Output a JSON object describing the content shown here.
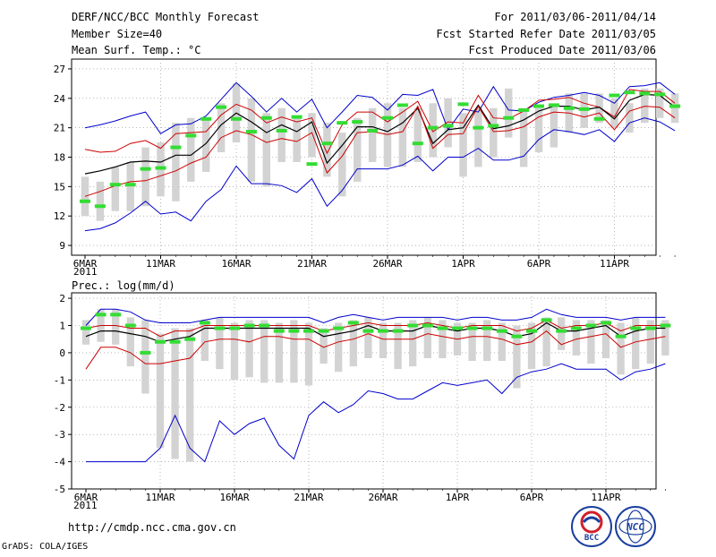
{
  "header": {
    "title": "DERF/NCC/BCC Monthly Forecast",
    "member_size": "Member Size=40",
    "variable": "Mean Surf. Temp.: °C",
    "forecast_period": "For 2011/03/06-2011/04/14",
    "started_refer": "Fcst Started Refer Date 2011/03/05",
    "produced": "Fcst Produced Date 2011/03/06"
  },
  "footer": {
    "url": "http://cmdp.ncc.cma.gov.cn",
    "credit": "GrADS: COLA/IGES",
    "logo_bcc": "BCC",
    "logo_ncc": "NCC"
  },
  "colors": {
    "envelope": "#0000cc",
    "inner": "#cc0000",
    "mean": "#000000",
    "median": "#33dd33",
    "box": "#d3d3d3"
  },
  "chart_data": [
    {
      "type": "line",
      "title": "",
      "ylabel": "Mean Surf. Temp.: °C",
      "ylim": [
        8,
        28
      ],
      "y_ticks": [
        9,
        12,
        15,
        18,
        21,
        24,
        27
      ],
      "x_day_range": [
        0,
        39
      ],
      "x_tick_days": [
        0,
        5,
        10,
        15,
        20,
        25,
        30,
        35
      ],
      "x_ticks": [
        "6MAR",
        "11MAR",
        "16MAR",
        "21MAR",
        "26MAR",
        "1APR",
        "6APR",
        "11APR"
      ],
      "year_label": "2011",
      "box_low": [
        12.0,
        11.5,
        12.5,
        12.5,
        13.0,
        14.0,
        13.5,
        15.5,
        16.5,
        18.5,
        19.5,
        15.5,
        15.0,
        17.5,
        17.5,
        18.0,
        16.0,
        14.0,
        15.5,
        17.5,
        17.0,
        17.0,
        17.5,
        18.0,
        19.0,
        16.0,
        17.0,
        18.0,
        20.0,
        17.0,
        18.5,
        19.0,
        20.5,
        21.0,
        21.5,
        21.0,
        20.5,
        21.5,
        22.0,
        21.5
      ],
      "box_high": [
        16.0,
        15.5,
        17.0,
        17.5,
        19.0,
        19.5,
        21.5,
        22.0,
        22.0,
        23.5,
        25.5,
        24.0,
        22.5,
        23.0,
        22.0,
        22.5,
        21.5,
        20.5,
        22.0,
        23.0,
        23.5,
        23.0,
        23.0,
        23.5,
        24.0,
        22.5,
        23.0,
        23.0,
        25.0,
        23.0,
        23.0,
        23.5,
        24.5,
        24.5,
        24.5,
        24.0,
        23.5,
        25.0,
        25.0,
        24.5
      ],
      "series": [
        {
          "name": "max",
          "values": [
            21.0,
            21.3,
            21.7,
            22.2,
            22.6,
            20.4,
            21.3,
            21.4,
            22.2,
            23.9,
            25.6,
            24.2,
            22.6,
            24.0,
            22.6,
            23.9,
            21.0,
            22.6,
            24.3,
            24.1,
            22.8,
            24.4,
            24.3,
            24.9,
            20.8,
            22.9,
            22.6,
            25.2,
            22.8,
            22.7,
            23.6,
            24.1,
            24.3,
            24.6,
            24.3,
            23.5,
            25.2,
            25.3,
            25.6,
            24.4
          ]
        },
        {
          "name": "upper",
          "values": [
            18.8,
            18.5,
            18.6,
            19.4,
            19.7,
            18.9,
            20.4,
            20.5,
            20.6,
            22.3,
            23.4,
            22.8,
            21.5,
            22.1,
            21.6,
            22.0,
            18.4,
            21.3,
            22.6,
            22.6,
            21.6,
            22.6,
            23.7,
            20.6,
            21.6,
            21.5,
            24.3,
            22.0,
            21.9,
            22.7,
            23.8,
            23.9,
            24.1,
            23.5,
            23.1,
            22.1,
            24.9,
            24.7,
            24.7,
            23.5
          ]
        },
        {
          "name": "mean",
          "values": [
            16.3,
            16.6,
            17.0,
            17.5,
            17.6,
            17.5,
            18.2,
            18.2,
            19.4,
            21.3,
            22.5,
            21.6,
            20.5,
            21.3,
            20.6,
            21.6,
            17.4,
            19.2,
            21.1,
            21.1,
            20.6,
            21.5,
            23.0,
            19.4,
            20.8,
            21.0,
            23.3,
            20.9,
            21.2,
            21.8,
            22.7,
            23.2,
            23.2,
            22.8,
            23.1,
            21.9,
            23.8,
            24.4,
            24.3,
            23.1
          ]
        },
        {
          "name": "lower",
          "values": [
            14.0,
            14.5,
            15.1,
            15.5,
            15.6,
            16.1,
            16.6,
            17.4,
            18.0,
            20.0,
            20.7,
            20.3,
            19.5,
            19.9,
            19.6,
            20.5,
            16.4,
            18.1,
            20.5,
            20.6,
            20.3,
            20.6,
            23.2,
            18.9,
            20.3,
            20.4,
            23.2,
            20.6,
            20.7,
            21.1,
            22.1,
            22.6,
            22.5,
            22.1,
            22.5,
            20.8,
            22.7,
            23.2,
            23.1,
            22.0
          ]
        },
        {
          "name": "min",
          "values": [
            10.5,
            10.7,
            11.3,
            12.3,
            13.5,
            12.2,
            12.4,
            11.5,
            13.5,
            14.7,
            17.1,
            15.3,
            15.3,
            15.1,
            14.4,
            15.8,
            13.0,
            14.6,
            16.8,
            16.8,
            16.8,
            17.2,
            18.1,
            16.6,
            18.0,
            18.0,
            18.9,
            17.7,
            17.7,
            18.1,
            19.8,
            20.8,
            20.6,
            20.3,
            20.8,
            19.6,
            21.5,
            22.0,
            21.6,
            20.7
          ]
        }
      ],
      "medians": [
        13.5,
        13.0,
        15.2,
        15.2,
        16.8,
        16.9,
        19.0,
        20.2,
        21.9,
        23.1,
        21.9,
        20.6,
        22.0,
        20.7,
        22.1,
        17.3,
        19.4,
        21.5,
        21.6,
        20.7,
        22.0,
        23.3,
        19.4,
        21.0,
        21.2,
        23.4,
        21.0,
        21.2,
        22.0,
        22.8,
        23.2,
        23.3,
        23.0,
        22.9,
        21.9,
        24.3,
        24.6,
        24.5,
        24.4,
        23.2
      ]
    },
    {
      "type": "line",
      "title": "",
      "ylabel": "Prec.: log(mm/d)",
      "ylim": [
        -5,
        2.2
      ],
      "y_ticks": [
        -5,
        -4,
        -3,
        -2,
        -1,
        0,
        1,
        2
      ],
      "x_day_range": [
        0,
        39
      ],
      "x_tick_days": [
        0,
        5,
        10,
        15,
        20,
        25,
        30,
        35
      ],
      "x_ticks": [
        "6MAR",
        "11MAR",
        "16MAR",
        "21MAR",
        "26MAR",
        "1APR",
        "6APR",
        "11APR"
      ],
      "year_label": "2011",
      "box_low": [
        0.3,
        0.4,
        0.3,
        -0.5,
        -1.5,
        -3.5,
        -3.9,
        -4.0,
        -0.3,
        -0.6,
        -1.0,
        -0.9,
        -1.1,
        -1.1,
        -1.1,
        -1.2,
        -0.4,
        -0.7,
        -0.5,
        -0.2,
        -0.2,
        -0.6,
        -0.5,
        -0.2,
        -0.2,
        -0.1,
        -0.3,
        -0.3,
        -0.3,
        -1.3,
        -0.6,
        -0.5,
        0.1,
        -0.1,
        -0.4,
        -0.2,
        -0.8,
        -0.6,
        -0.4,
        -0.1
      ],
      "box_high": [
        1.2,
        1.6,
        1.6,
        1.3,
        1.2,
        0.7,
        0.9,
        0.9,
        1.2,
        1.3,
        1.1,
        1.2,
        1.2,
        1.1,
        1.2,
        1.1,
        0.9,
        1.1,
        1.2,
        1.3,
        1.1,
        1.1,
        1.2,
        1.3,
        1.2,
        1.1,
        1.1,
        1.2,
        1.1,
        1.0,
        1.1,
        1.3,
        1.3,
        1.2,
        1.2,
        1.2,
        1.1,
        1.3,
        1.2,
        1.2
      ],
      "series": [
        {
          "name": "max",
          "values": [
            1.0,
            1.6,
            1.6,
            1.5,
            1.2,
            1.1,
            1.1,
            1.1,
            1.2,
            1.3,
            1.3,
            1.3,
            1.3,
            1.3,
            1.3,
            1.3,
            1.1,
            1.3,
            1.4,
            1.3,
            1.2,
            1.3,
            1.3,
            1.3,
            1.3,
            1.2,
            1.3,
            1.3,
            1.2,
            1.2,
            1.3,
            1.6,
            1.4,
            1.3,
            1.3,
            1.3,
            1.2,
            1.3,
            1.3,
            1.3
          ]
        },
        {
          "name": "upper",
          "values": [
            0.9,
            1.0,
            1.0,
            0.9,
            0.9,
            0.6,
            0.8,
            0.8,
            1.0,
            1.0,
            1.0,
            1.0,
            1.0,
            1.0,
            1.0,
            1.0,
            0.8,
            0.9,
            1.0,
            1.1,
            1.0,
            1.0,
            1.0,
            1.1,
            1.0,
            0.9,
            1.0,
            1.0,
            1.0,
            0.8,
            0.9,
            1.2,
            0.9,
            1.0,
            1.0,
            1.1,
            0.8,
            1.0,
            1.0,
            1.0
          ]
        },
        {
          "name": "mean",
          "values": [
            0.6,
            0.8,
            0.8,
            0.7,
            0.6,
            0.4,
            0.5,
            0.6,
            0.9,
            0.9,
            0.9,
            0.9,
            0.9,
            0.9,
            0.9,
            0.9,
            0.6,
            0.7,
            0.8,
            1.0,
            0.8,
            0.8,
            0.8,
            1.0,
            0.9,
            0.8,
            0.9,
            0.9,
            0.8,
            0.6,
            0.7,
            1.1,
            0.8,
            0.8,
            0.9,
            1.0,
            0.6,
            0.8,
            0.9,
            0.9
          ]
        },
        {
          "name": "lower",
          "values": [
            -0.6,
            0.2,
            0.2,
            0.0,
            -0.4,
            -0.4,
            -0.3,
            -0.2,
            0.4,
            0.5,
            0.5,
            0.4,
            0.6,
            0.6,
            0.5,
            0.5,
            0.2,
            0.4,
            0.5,
            0.7,
            0.5,
            0.5,
            0.5,
            0.7,
            0.6,
            0.5,
            0.6,
            0.6,
            0.5,
            0.3,
            0.4,
            0.8,
            0.3,
            0.5,
            0.6,
            0.7,
            0.2,
            0.4,
            0.5,
            0.6
          ]
        },
        {
          "name": "min",
          "values": [
            -4.0,
            -4.0,
            -4.0,
            -4.0,
            -4.0,
            -3.5,
            -2.3,
            -3.5,
            -4.0,
            -2.5,
            -3.0,
            -2.6,
            -2.4,
            -3.4,
            -3.9,
            -2.3,
            -1.8,
            -2.2,
            -1.9,
            -1.4,
            -1.5,
            -1.7,
            -1.7,
            -1.4,
            -1.1,
            -1.2,
            -1.1,
            -1.0,
            -1.5,
            -0.9,
            -0.7,
            -0.6,
            -0.4,
            -0.6,
            -0.6,
            -0.6,
            -1.0,
            -0.7,
            -0.6,
            -0.4
          ]
        }
      ],
      "medians": [
        0.9,
        1.4,
        1.4,
        1.0,
        0.0,
        0.4,
        0.4,
        0.5,
        1.1,
        0.9,
        0.9,
        1.0,
        1.0,
        0.8,
        0.8,
        0.8,
        0.8,
        0.9,
        1.1,
        0.8,
        0.8,
        0.8,
        1.0,
        1.0,
        0.9,
        0.9,
        0.9,
        0.9,
        0.8,
        0.6,
        0.8,
        1.2,
        0.8,
        0.9,
        1.0,
        1.1,
        0.6,
        0.9,
        0.9,
        1.0
      ]
    }
  ]
}
